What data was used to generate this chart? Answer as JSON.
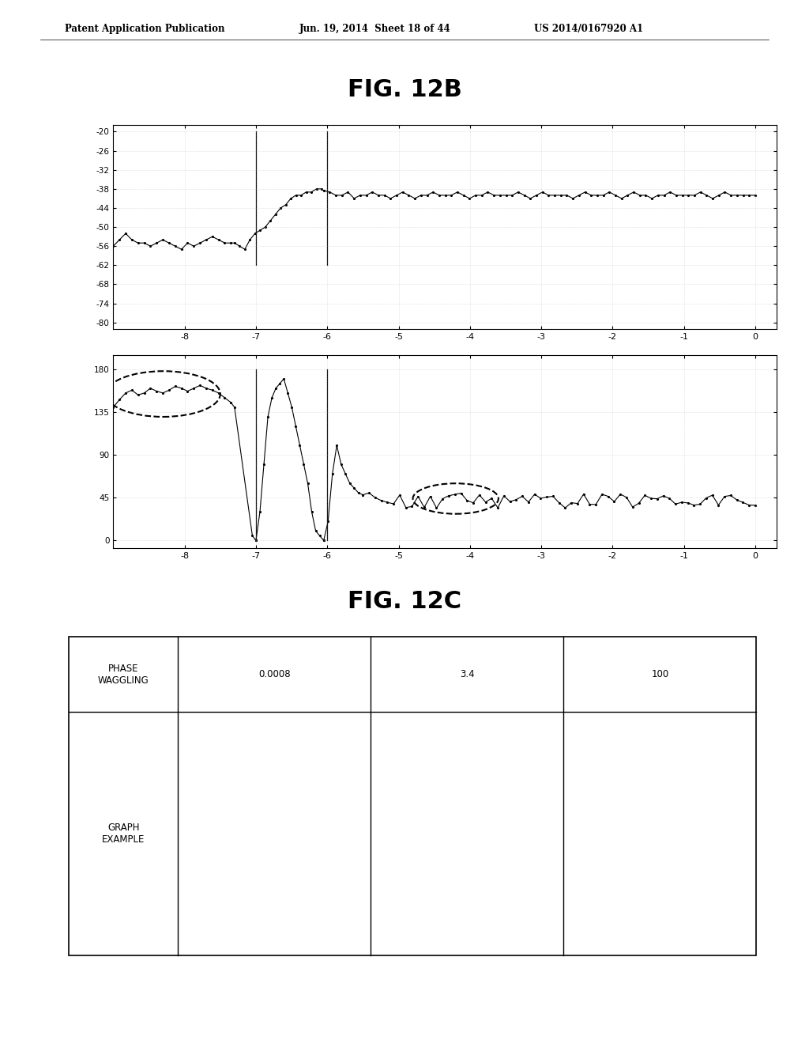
{
  "fig_title_12b": "FIG. 12B",
  "fig_title_12c": "FIG. 12C",
  "header_left": "Patent Application Publication",
  "header_mid": "Jun. 19, 2014  Sheet 18 of 44",
  "header_right": "US 2014/0167920 A1",
  "plot1_ylabel_ticks": [
    -20,
    -26,
    -32,
    -38,
    -44,
    -50,
    -56,
    -62,
    -68,
    -74,
    -80
  ],
  "plot1_xlabel_ticks": [
    -8,
    -7,
    -6,
    -5,
    -4,
    -3,
    -2,
    -1,
    0
  ],
  "plot1_ylim": [
    -82,
    -18
  ],
  "plot1_xlim": [
    -9,
    0.3
  ],
  "plot2_ylabel_ticks": [
    0,
    45,
    90,
    135,
    180
  ],
  "plot2_xlabel_ticks": [
    -8,
    -7,
    -6,
    -5,
    -4,
    -3,
    -2,
    -1,
    0
  ],
  "plot2_ylim": [
    -8,
    195
  ],
  "plot2_xlim": [
    -9,
    0.3
  ],
  "bg_color": "#ffffff",
  "line_color": "#000000",
  "table_col0_header": "PHASE\nWAGGLING",
  "table_col1_header": "0.0008",
  "table_col2_header": "3.4",
  "table_col3_header": "100",
  "table_row_label": "GRAPH\nEXAMPLE"
}
